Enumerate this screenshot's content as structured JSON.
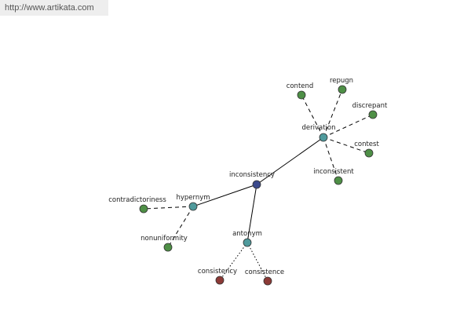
{
  "header": {
    "url": "http://www.artikata.com"
  },
  "nodes": [
    {
      "label": "inconsistency"
    },
    {
      "label": "derivation"
    },
    {
      "label": "hypernym"
    },
    {
      "label": "antonym"
    },
    {
      "label": "contend"
    },
    {
      "label": "repugn"
    },
    {
      "label": "discrepant"
    },
    {
      "label": "contest"
    },
    {
      "label": "inconsistent"
    },
    {
      "label": "contradictoriness"
    },
    {
      "label": "nonuniformity"
    },
    {
      "label": "consistency"
    },
    {
      "label": "consistence"
    }
  ]
}
